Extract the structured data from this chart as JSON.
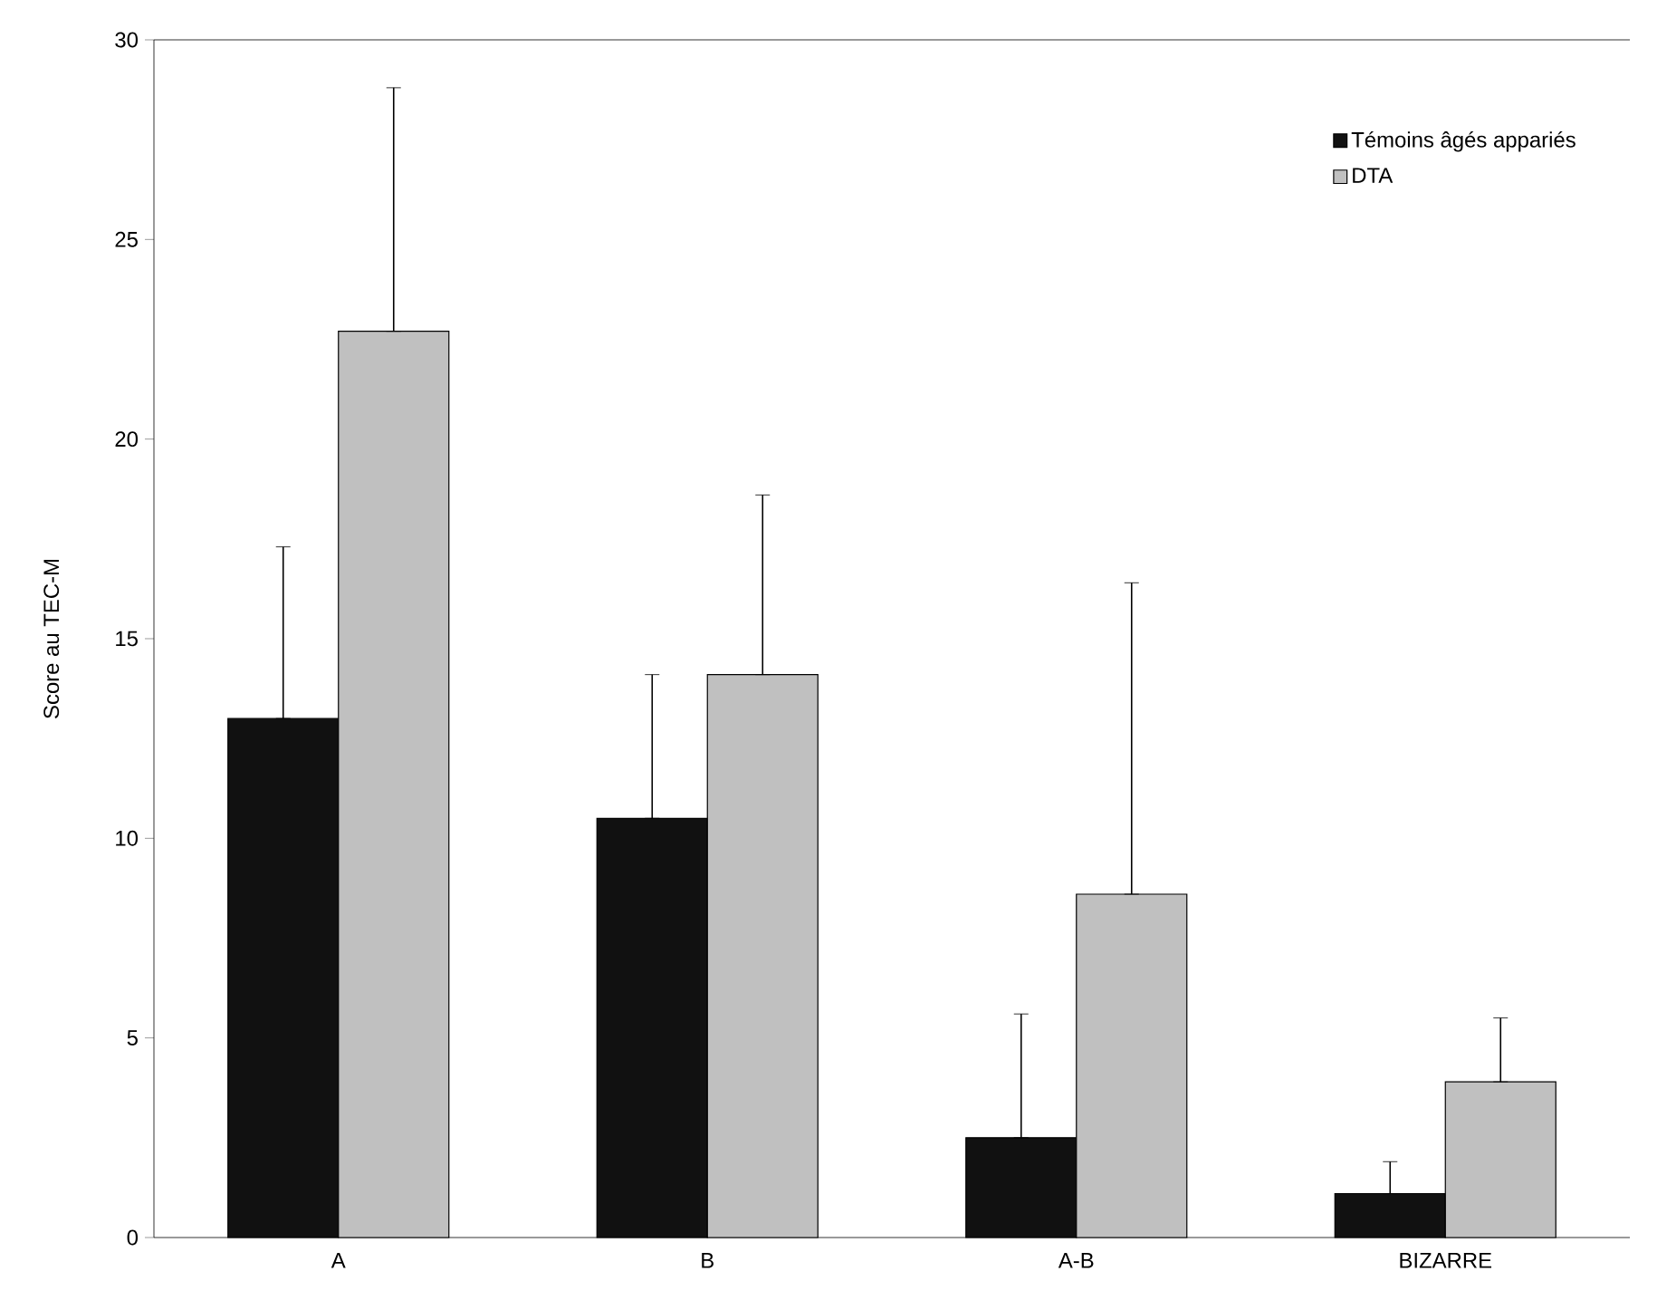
{
  "chart_data": {
    "type": "bar",
    "ylabel": "Score au TEC-M",
    "categories": [
      "A",
      "B",
      "A-B",
      "BIZARRE"
    ],
    "series": [
      {
        "name": "Témoins âgés appariés",
        "color": "#111111",
        "values": [
          13.0,
          10.5,
          2.5,
          1.1
        ],
        "errors": [
          [
            13.0,
            17.3
          ],
          [
            10.5,
            14.1
          ],
          [
            2.5,
            5.6
          ],
          [
            1.1,
            1.9
          ]
        ]
      },
      {
        "name": "DTA",
        "color": "#c0c0c0",
        "values": [
          22.7,
          14.1,
          8.6,
          3.9
        ],
        "errors": [
          [
            22.7,
            28.8
          ],
          [
            14.1,
            18.6
          ],
          [
            8.6,
            16.4
          ],
          [
            3.9,
            5.5
          ]
        ]
      }
    ],
    "ylim": [
      0,
      30
    ],
    "yticks": [
      0,
      5,
      10,
      15,
      20,
      25,
      30
    ],
    "grid": false,
    "legend": "top right"
  }
}
